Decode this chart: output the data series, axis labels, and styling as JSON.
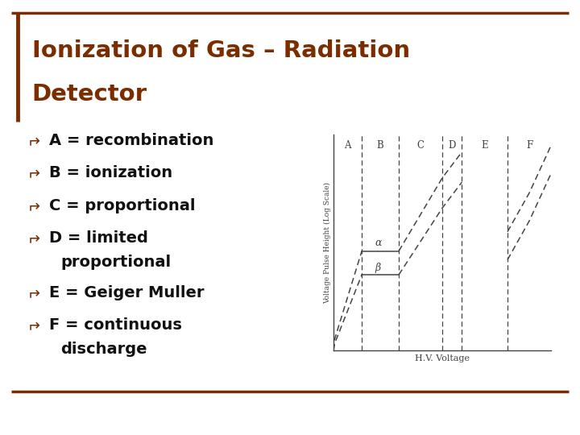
{
  "title_line1": "Ionization of Gas – Radiation",
  "title_line2": "Detector",
  "title_color": "#7B2D00",
  "background_color": "#FFFFFF",
  "border_color": "#7B2D00",
  "bullet_items": [
    "A = recombination",
    "B = ionization",
    "C = proportional",
    "D = limited\n   proportional",
    "E = Geiger Muller",
    "F = continuous\n   discharge"
  ],
  "bullet_color": "#7B2D00",
  "text_color": "#111111",
  "region_labels": [
    "A",
    "B",
    "C",
    "D",
    "E",
    "F"
  ],
  "ylabel": "Voltage Pulse Height (Log Scale)",
  "xlabel": "H.V. Voltage",
  "alpha_label": "α",
  "beta_label": "β",
  "line_color": "#444444"
}
